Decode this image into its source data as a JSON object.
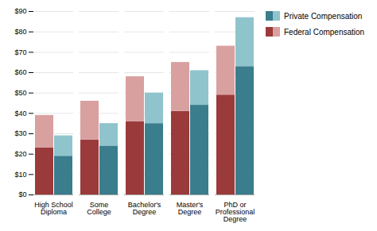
{
  "chart_data": {
    "type": "bar",
    "stacked": true,
    "categories": [
      "High School\nDiploma",
      "Some\nCollege",
      "Bachelor's\nDegree",
      "Master's\nDegree",
      "PhD or\nProfessional\nDegree"
    ],
    "series": [
      {
        "name": "Federal Compensation",
        "colors": [
          "#9B3A3A",
          "#D9A0A0"
        ],
        "segments": [
          [
            23,
            27,
            36,
            41,
            49
          ],
          [
            16,
            19,
            22,
            24,
            24
          ]
        ]
      },
      {
        "name": "Private Compensation",
        "colors": [
          "#3A7D8C",
          "#90C4CC"
        ],
        "segments": [
          [
            19,
            24,
            35,
            44,
            63
          ],
          [
            10,
            11,
            15,
            17,
            24
          ]
        ]
      }
    ],
    "ylim": [
      0,
      90
    ],
    "yticks": [
      {
        "value": 0,
        "label": "$0"
      },
      {
        "value": 10,
        "label": "$10"
      },
      {
        "value": 20,
        "label": "$20"
      },
      {
        "value": 30,
        "label": "$30"
      },
      {
        "value": 40,
        "label": "$40"
      },
      {
        "value": 50,
        "label": "$50"
      },
      {
        "value": 60,
        "label": "$60"
      },
      {
        "value": 70,
        "label": "$70"
      },
      {
        "value": 80,
        "label": "$80"
      },
      {
        "value": 90,
        "label": "$90"
      }
    ],
    "grid": true,
    "legend": "right"
  }
}
